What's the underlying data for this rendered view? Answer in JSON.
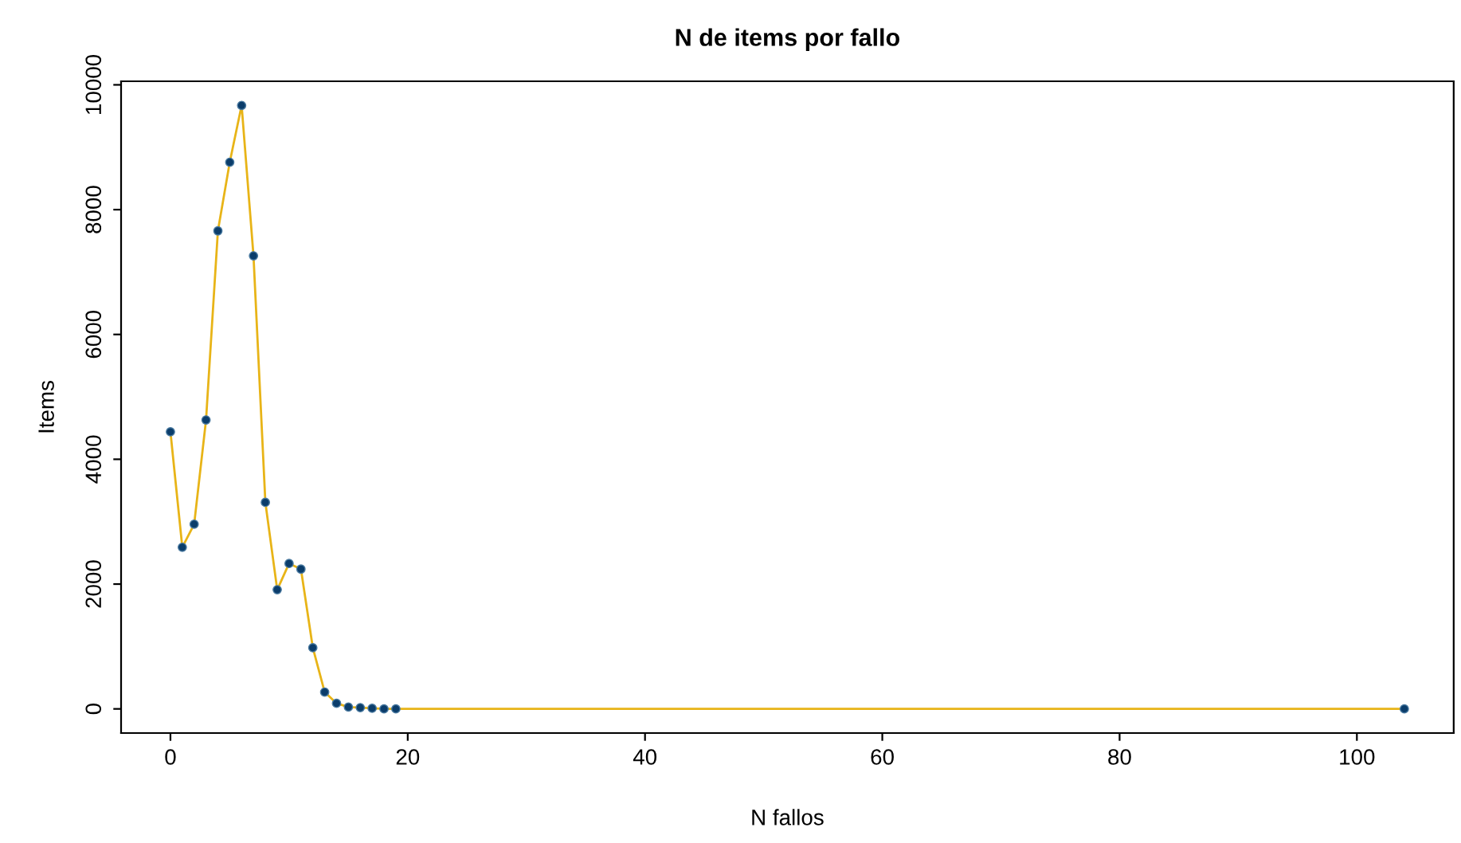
{
  "chart_data": {
    "type": "line",
    "title": "N de items por fallo",
    "xlabel": "N fallos",
    "ylabel": "Items",
    "x": [
      0,
      1,
      2,
      3,
      4,
      5,
      6,
      7,
      8,
      9,
      10,
      11,
      12,
      13,
      14,
      15,
      16,
      17,
      18,
      19,
      104
    ],
    "series": [
      {
        "color": "#e8b417",
        "colors": [
          "#0b3d6b",
          "#0b3d6b",
          "#0b3d6b",
          "#0b3d6b",
          "#0b3d6b",
          "#0b3d6b",
          "#0b3d6b",
          "#0b3d6b",
          "#0b3d6b",
          "#0b3d6b",
          "#0b3d6b",
          "#0b3d6b",
          "#0b3d6b",
          "#0b3d6b",
          "#0b3d6b",
          "#0b3d6b",
          "#0b3d6b",
          "#0b3d6b",
          "#0b3d6b",
          "#0b3d6b",
          "#0b3d6b"
        ],
        "values": [
          4440,
          2590,
          2960,
          4630,
          7660,
          8760,
          9670,
          7260,
          3310,
          1910,
          2330,
          2240,
          980,
          270,
          90,
          30,
          20,
          10,
          0,
          0,
          0
        ]
      }
    ],
    "xlim": [
      -4.16,
      108.16
    ],
    "ylim": [
      -387,
      10057
    ],
    "xticks": [
      0,
      20,
      40,
      60,
      80,
      100
    ],
    "yticks": [
      0,
      2000,
      4000,
      6000,
      8000,
      10000
    ],
    "marker": "circle"
  }
}
